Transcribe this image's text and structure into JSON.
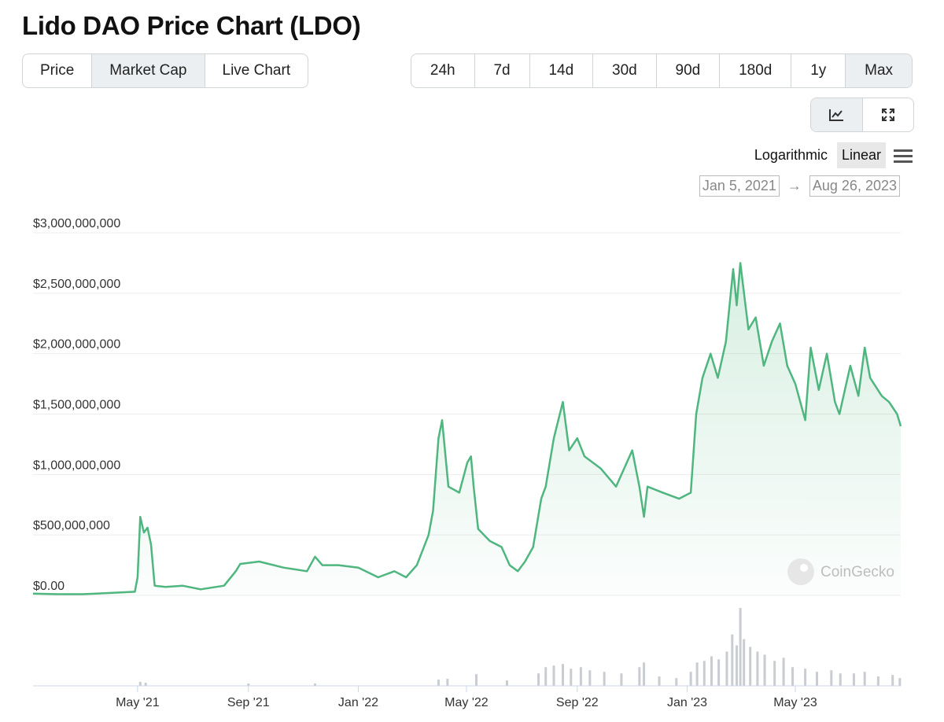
{
  "header": {
    "title": "Lido DAO Price Chart (LDO)"
  },
  "tabs": {
    "items": [
      "Price",
      "Market Cap",
      "Live Chart"
    ],
    "selected": 1
  },
  "ranges": {
    "items": [
      "24h",
      "7d",
      "14d",
      "30d",
      "90d",
      "180d",
      "1y",
      "Max"
    ],
    "selected": 7
  },
  "scale_options": {
    "items": [
      "Logarithmic",
      "Linear"
    ],
    "selected": 1
  },
  "date_range": {
    "from": "Jan 5, 2021",
    "to": "Aug 26, 2023"
  },
  "watermark": "CoinGecko",
  "chart_data": {
    "type": "line",
    "color": "#4eb67e",
    "grid": true,
    "log_scale": false,
    "x": [
      "2021-01-05",
      "2021-02-01",
      "2021-03-01",
      "2021-04-01",
      "2021-04-28",
      "2021-05-01",
      "2021-05-04",
      "2021-05-08",
      "2021-05-12",
      "2021-05-16",
      "2021-05-20",
      "2021-06-01",
      "2021-06-20",
      "2021-07-10",
      "2021-08-05",
      "2021-08-18",
      "2021-08-23",
      "2021-09-13",
      "2021-10-10",
      "2021-11-05",
      "2021-11-14",
      "2021-11-22",
      "2021-12-10",
      "2022-01-01",
      "2022-01-23",
      "2022-02-10",
      "2022-02-23",
      "2022-03-07",
      "2022-03-20",
      "2022-03-25",
      "2022-03-31",
      "2022-04-04",
      "2022-04-11",
      "2022-04-23",
      "2022-05-02",
      "2022-05-06",
      "2022-05-09",
      "2022-05-14",
      "2022-05-27",
      "2022-06-09",
      "2022-06-18",
      "2022-06-27",
      "2022-07-05",
      "2022-07-14",
      "2022-07-23",
      "2022-07-28",
      "2022-08-06",
      "2022-08-16",
      "2022-08-23",
      "2022-09-01",
      "2022-09-09",
      "2022-09-27",
      "2022-10-14",
      "2022-11-01",
      "2022-11-09",
      "2022-11-14",
      "2022-11-18",
      "2022-12-05",
      "2022-12-23",
      "2023-01-05",
      "2023-01-11",
      "2023-01-18",
      "2023-01-27",
      "2023-02-04",
      "2023-02-13",
      "2023-02-21",
      "2023-02-25",
      "2023-03-01",
      "2023-03-10",
      "2023-03-18",
      "2023-03-27",
      "2023-04-05",
      "2023-04-14",
      "2023-04-22",
      "2023-05-01",
      "2023-05-12",
      "2023-05-18",
      "2023-05-27",
      "2023-06-05",
      "2023-06-14",
      "2023-06-19",
      "2023-07-01",
      "2023-07-10",
      "2023-07-17",
      "2023-07-23",
      "2023-08-05",
      "2023-08-13",
      "2023-08-22",
      "2023-08-26"
    ],
    "values": [
      15000000,
      10000000,
      10000000,
      20000000,
      30000000,
      150000000,
      650000000,
      520000000,
      560000000,
      420000000,
      80000000,
      70000000,
      80000000,
      50000000,
      80000000,
      200000000,
      260000000,
      280000000,
      230000000,
      200000000,
      320000000,
      250000000,
      250000000,
      230000000,
      150000000,
      200000000,
      150000000,
      250000000,
      500000000,
      700000000,
      1300000000,
      1450000000,
      900000000,
      850000000,
      1100000000,
      1150000000,
      900000000,
      550000000,
      450000000,
      400000000,
      250000000,
      200000000,
      280000000,
      400000000,
      800000000,
      900000000,
      1300000000,
      1600000000,
      1200000000,
      1300000000,
      1150000000,
      1050000000,
      900000000,
      1200000000,
      900000000,
      650000000,
      900000000,
      850000000,
      800000000,
      850000000,
      1500000000,
      1800000000,
      2000000000,
      1800000000,
      2100000000,
      2700000000,
      2400000000,
      2750000000,
      2200000000,
      2300000000,
      1900000000,
      2100000000,
      2250000000,
      1900000000,
      1750000000,
      1450000000,
      2050000000,
      1700000000,
      2000000000,
      1600000000,
      1500000000,
      1900000000,
      1650000000,
      2050000000,
      1800000000,
      1650000000,
      1600000000,
      1500000000,
      1400000000
    ],
    "xlim": [
      "2021-01-05",
      "2023-08-26"
    ],
    "xticks": [
      {
        "value": "2021-05-01",
        "label": "May '21"
      },
      {
        "value": "2021-09-01",
        "label": "Sep '21"
      },
      {
        "value": "2022-01-01",
        "label": "Jan '22"
      },
      {
        "value": "2022-05-01",
        "label": "May '22"
      },
      {
        "value": "2022-09-01",
        "label": "Sep '22"
      },
      {
        "value": "2023-01-01",
        "label": "Jan '23"
      },
      {
        "value": "2023-05-01",
        "label": "May '23"
      }
    ],
    "ylim": [
      0,
      3000000000
    ],
    "yticks": [
      {
        "value": 0,
        "label": "$0.00"
      },
      {
        "value": 500000000,
        "label": "$500,000,000"
      },
      {
        "value": 1000000000,
        "label": "$1,000,000,000"
      },
      {
        "value": 1500000000,
        "label": "$1,500,000,000"
      },
      {
        "value": 2000000000,
        "label": "$2,000,000,000"
      },
      {
        "value": 2500000000,
        "label": "$2,500,000,000"
      },
      {
        "value": 3000000000,
        "label": "$3,000,000,000"
      }
    ],
    "volume": {
      "color": "#c9ccd1",
      "ylim": [
        0,
        500000000
      ],
      "x": [
        "2021-05-04",
        "2021-05-10",
        "2021-09-01",
        "2021-11-14",
        "2022-03-31",
        "2022-04-10",
        "2022-05-12",
        "2022-06-15",
        "2022-07-20",
        "2022-07-28",
        "2022-08-06",
        "2022-08-16",
        "2022-08-25",
        "2022-09-05",
        "2022-09-15",
        "2022-10-01",
        "2022-10-20",
        "2022-11-09",
        "2022-11-14",
        "2022-12-01",
        "2022-12-20",
        "2023-01-05",
        "2023-01-12",
        "2023-01-20",
        "2023-01-28",
        "2023-02-05",
        "2023-02-14",
        "2023-02-20",
        "2023-02-25",
        "2023-03-01",
        "2023-03-05",
        "2023-03-12",
        "2023-03-20",
        "2023-03-28",
        "2023-04-08",
        "2023-04-18",
        "2023-04-28",
        "2023-05-12",
        "2023-05-25",
        "2023-06-10",
        "2023-06-20",
        "2023-07-05",
        "2023-07-17",
        "2023-08-01",
        "2023-08-17",
        "2023-08-25"
      ],
      "values": [
        25000000,
        20000000,
        15000000,
        15000000,
        40000000,
        45000000,
        75000000,
        35000000,
        80000000,
        120000000,
        130000000,
        140000000,
        110000000,
        120000000,
        100000000,
        90000000,
        80000000,
        120000000,
        150000000,
        60000000,
        50000000,
        90000000,
        150000000,
        160000000,
        190000000,
        170000000,
        220000000,
        330000000,
        260000000,
        500000000,
        300000000,
        250000000,
        220000000,
        200000000,
        160000000,
        180000000,
        120000000,
        110000000,
        90000000,
        100000000,
        80000000,
        80000000,
        90000000,
        60000000,
        70000000,
        50000000
      ]
    }
  }
}
